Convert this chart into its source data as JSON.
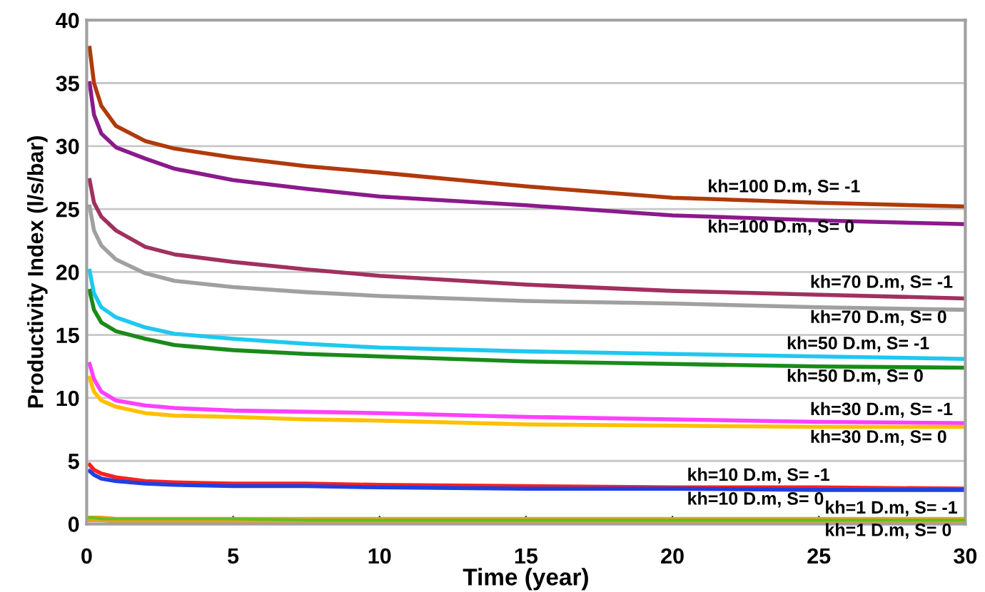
{
  "chart_data": {
    "type": "line",
    "xlabel": "Time (year)",
    "ylabel": "Productivity Index (l/s/bar)",
    "x": [
      0.1,
      0.25,
      0.5,
      1,
      2,
      3,
      5,
      7.5,
      10,
      15,
      20,
      25,
      30
    ],
    "series": [
      {
        "name": "kh=100 D.m, S= -1",
        "color": "#b03a0b",
        "values": [
          37.8,
          35.0,
          33.2,
          31.6,
          30.4,
          29.8,
          29.1,
          28.4,
          27.9,
          26.8,
          25.9,
          25.5,
          25.2
        ]
      },
      {
        "name": "kh=100 D.m, S= 0",
        "color": "#8b1a8b",
        "values": [
          35.0,
          32.5,
          31.0,
          29.9,
          29.0,
          28.2,
          27.3,
          26.6,
          26.0,
          25.3,
          24.5,
          24.1,
          23.8
        ]
      },
      {
        "name": "kh=70 D.m, S= -1",
        "color": "#a0305f",
        "values": [
          27.3,
          25.5,
          24.4,
          23.3,
          22.0,
          21.4,
          20.8,
          20.2,
          19.7,
          19.0,
          18.5,
          18.2,
          17.9
        ]
      },
      {
        "name": "kh=70 D.m, S= 0",
        "color": "#a0a0a0",
        "values": [
          25.2,
          23.3,
          22.1,
          21.0,
          19.9,
          19.3,
          18.8,
          18.4,
          18.1,
          17.7,
          17.5,
          17.2,
          17.0
        ]
      },
      {
        "name": "kh=50 D.m, S= -1",
        "color": "#1ec8f0",
        "values": [
          20.1,
          18.3,
          17.2,
          16.4,
          15.6,
          15.1,
          14.7,
          14.3,
          14.0,
          13.7,
          13.5,
          13.3,
          13.1
        ]
      },
      {
        "name": "kh=50 D.m, S= 0",
        "color": "#1a8a1a",
        "values": [
          18.5,
          17.0,
          16.0,
          15.3,
          14.7,
          14.2,
          13.8,
          13.5,
          13.3,
          12.9,
          12.7,
          12.5,
          12.4
        ]
      },
      {
        "name": "kh=30 D.m, S= -1",
        "color": "#ff40ff",
        "values": [
          12.7,
          11.5,
          10.5,
          9.8,
          9.4,
          9.2,
          9.0,
          8.9,
          8.8,
          8.5,
          8.3,
          8.1,
          8.0
        ]
      },
      {
        "name": "kh=30 D.m, S= 0",
        "color": "#ffc000",
        "values": [
          11.6,
          10.5,
          9.8,
          9.3,
          8.8,
          8.6,
          8.5,
          8.3,
          8.2,
          7.9,
          7.8,
          7.7,
          7.7
        ]
      },
      {
        "name": "kh=10 D.m, S= -1",
        "color": "#ff2020",
        "values": [
          4.7,
          4.3,
          4.0,
          3.7,
          3.4,
          3.3,
          3.2,
          3.2,
          3.1,
          3.0,
          2.9,
          2.9,
          2.8
        ]
      },
      {
        "name": "kh=10 D.m, S= 0",
        "color": "#2040e0",
        "values": [
          4.2,
          3.9,
          3.6,
          3.4,
          3.2,
          3.1,
          3.0,
          3.0,
          2.9,
          2.8,
          2.8,
          2.7,
          2.7
        ]
      },
      {
        "name": "kh=1 D.m, S= -1",
        "color": "#60c020",
        "values": [
          0.5,
          0.5,
          0.4,
          0.4,
          0.4,
          0.4,
          0.4,
          0.3,
          0.3,
          0.3,
          0.3,
          0.3,
          0.3
        ]
      },
      {
        "name": "kh=1 D.m, S= 0",
        "color": "#f0a020",
        "values": [
          0.4,
          0.4,
          0.4,
          0.3,
          0.3,
          0.3,
          0.3,
          0.3,
          0.3,
          0.3,
          0.3,
          0.3,
          0.3
        ]
      }
    ],
    "xlim": [
      0,
      30
    ],
    "xticks": [
      0,
      5,
      10,
      15,
      20,
      25,
      30
    ],
    "ylim": [
      0,
      40
    ],
    "yticks": [
      0,
      5,
      10,
      15,
      20,
      25,
      30,
      35,
      40
    ],
    "grid": "y",
    "marker": "none",
    "line_style": "solid"
  }
}
